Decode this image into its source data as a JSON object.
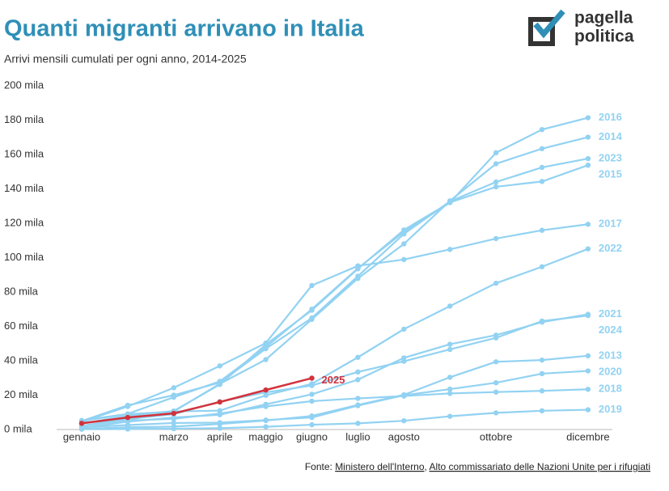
{
  "chart_data": {
    "type": "line",
    "title": "Quanti migranti arrivano in Italia",
    "subtitle": "Arrivi mensili cumulati per ogni anno, 2014-2025",
    "logo": [
      "pagella",
      "politica"
    ],
    "source_label": "Fonte:",
    "source_links": [
      "Ministero dell'Interno",
      "Alto commissariato delle Nazioni Unite per i rifugiati"
    ],
    "source_separator": ",",
    "categories": [
      "gennaio",
      null,
      "marzo",
      "aprile",
      "maggio",
      "giugno",
      "luglio",
      "agosto",
      null,
      "ottobre",
      null,
      "dicembre"
    ],
    "ylim": [
      0,
      200
    ],
    "yticks": [
      {
        "value": 0,
        "label": "0 mila"
      },
      {
        "value": 20,
        "label": "20 mila"
      },
      {
        "value": 40,
        "label": "40 mila"
      },
      {
        "value": 60,
        "label": "60 mila"
      },
      {
        "value": 80,
        "label": "80 mila"
      },
      {
        "value": 100,
        "label": "100 mila"
      },
      {
        "value": 120,
        "label": "120 mila"
      },
      {
        "value": 140,
        "label": "140 mila"
      },
      {
        "value": 160,
        "label": "160 mila"
      },
      {
        "value": 180,
        "label": "180 mila"
      },
      {
        "value": 200,
        "label": "200 mila"
      }
    ],
    "grid": false,
    "series": [
      {
        "name": "2016",
        "color": "#92d2f2",
        "values": [
          5.3,
          9.1,
          18.8,
          28,
          48,
          70,
          93.8,
          115,
          132,
          161,
          174.5,
          181.4
        ]
      },
      {
        "name": "2014",
        "color": "#92d2f2",
        "values": [
          2.2,
          5.5,
          10.5,
          26.6,
          40.7,
          64.1,
          87.9,
          108,
          133,
          154.6,
          163.4,
          170.1
        ]
      },
      {
        "name": "2023",
        "color": "#92d2f2",
        "values": [
          4.9,
          14.1,
          20.0,
          27.3,
          47.0,
          64.9,
          89.2,
          113.8,
          132.7,
          144.0,
          152.5,
          157.6
        ]
      },
      {
        "name": "2015",
        "color": "#92d2f2",
        "values": [
          3.5,
          7.9,
          10.8,
          26.2,
          49.4,
          69.4,
          93.5,
          116.1,
          132.1,
          141.2,
          144.3,
          153.8
        ]
      },
      {
        "name": "2017",
        "color": "#92d2f2",
        "values": [
          4.5,
          13.4,
          24.3,
          37.0,
          50.3,
          83.8,
          95.2,
          98.9,
          104.8,
          111.1,
          115.9,
          119.4
        ]
      },
      {
        "name": "2022",
        "color": "#92d2f2",
        "values": [
          5.0,
          8.9,
          10.5,
          11.0,
          19.9,
          26.6,
          42.0,
          58.4,
          71.8,
          85.1,
          94.7,
          105.1
        ]
      },
      {
        "name": "2021",
        "color": "#92d2f2",
        "values": [
          1.0,
          4.6,
          7.0,
          8.6,
          14.7,
          20.5,
          29.0,
          41.7,
          49.6,
          54.9,
          62.5,
          67.0
        ]
      },
      {
        "name": "2024",
        "color": "#92d2f2",
        "values": [
          2.2,
          6.1,
          8.9,
          16.2,
          21.6,
          25.6,
          33.5,
          39.7,
          46.6,
          53.3,
          63.1,
          66.3
        ]
      },
      {
        "name": "2013",
        "color": "#92d2f2",
        "values": [
          0.3,
          1.3,
          1.7,
          3.2,
          5.2,
          7.9,
          14.3,
          20.2,
          30.4,
          39.4,
          40.4,
          42.9
        ]
      },
      {
        "name": "2020",
        "color": "#92d2f2",
        "values": [
          1.3,
          2.6,
          3.8,
          4.0,
          5.5,
          7.0,
          13.9,
          19.9,
          23.5,
          27.2,
          32.5,
          34.1
        ]
      },
      {
        "name": "2018",
        "color": "#92d2f2",
        "values": [
          4.2,
          5.2,
          6.2,
          9.3,
          13.4,
          16.5,
          18.1,
          19.5,
          21.0,
          21.8,
          22.5,
          23.4
        ]
      },
      {
        "name": "2019",
        "color": "#92d2f2",
        "values": [
          0.2,
          0.3,
          0.5,
          0.8,
          1.6,
          2.8,
          3.6,
          5.1,
          7.7,
          9.7,
          10.9,
          11.5
        ]
      },
      {
        "name": "2025",
        "color": "#d2323c",
        "values": [
          3.6,
          7.0,
          9.4,
          16.0,
          23.0,
          29.9,
          null,
          null,
          null,
          null,
          null,
          null
        ]
      }
    ]
  }
}
